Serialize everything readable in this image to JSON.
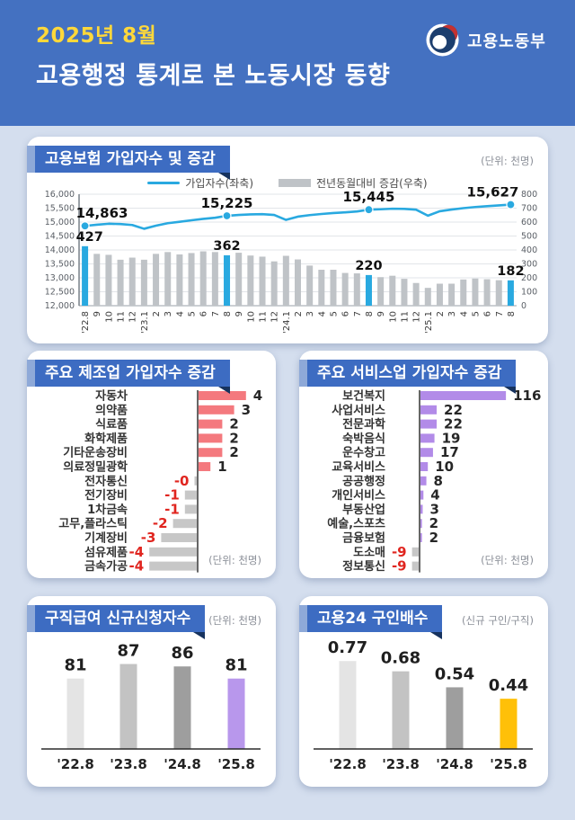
{
  "header": {
    "date": "2025년 8월",
    "title": "고용행정 통계로 본 노동시장 동향",
    "agency": "고용노동부"
  },
  "colors": {
    "header_blue": "#4471c1",
    "badge_blue": "#3d6cc2",
    "badge_fold": "#16325e",
    "accent_cyan": "#29a9e0",
    "bar_gray": "#bfc3c7",
    "manufacturing_pink": "#f4797e",
    "services_purple": "#b28be8",
    "benefit_purple": "#b897ec",
    "ratio_yellow": "#ffc008",
    "negative_red": "#e0251f",
    "date_yellow": "#ffd83a"
  },
  "chart_data": [
    {
      "id": "insurance",
      "type": "line+bar",
      "title": "고용보험 가입자수 및 증감",
      "unit_note": "(단위: 천명)",
      "legend": [
        {
          "label": "가입자수(좌축)",
          "style": "line",
          "color": "#29a9e0"
        },
        {
          "label": "전년동월대비 증감(우축)",
          "style": "bar",
          "color": "#bfc3c7"
        }
      ],
      "categories": [
        "'22.8",
        "9",
        "10",
        "11",
        "12",
        "'23.1",
        "2",
        "3",
        "4",
        "5",
        "6",
        "7",
        "8",
        "9",
        "10",
        "11",
        "12",
        "'24.1",
        "2",
        "3",
        "4",
        "5",
        "6",
        "7",
        "8",
        "9",
        "10",
        "11",
        "12",
        "'25.1",
        "2",
        "3",
        "4",
        "5",
        "6",
        "7",
        "8"
      ],
      "series": [
        {
          "name": "가입자수(좌축)",
          "type": "line",
          "axis": "left",
          "values": [
            14863,
            14905,
            14940,
            14930,
            14895,
            14760,
            14870,
            14960,
            15010,
            15065,
            15115,
            15155,
            15225,
            15255,
            15275,
            15285,
            15255,
            15080,
            15195,
            15250,
            15290,
            15325,
            15350,
            15380,
            15445,
            15460,
            15480,
            15475,
            15445,
            15230,
            15390,
            15450,
            15500,
            15540,
            15570,
            15600,
            15627
          ]
        },
        {
          "name": "전년동월대비 증감(우축)",
          "type": "bar",
          "axis": "right",
          "values": [
            427,
            372,
            365,
            330,
            345,
            330,
            372,
            385,
            368,
            378,
            390,
            385,
            362,
            380,
            360,
            352,
            318,
            358,
            332,
            288,
            258,
            258,
            235,
            232,
            220,
            205,
            215,
            193,
            163,
            128,
            158,
            158,
            188,
            195,
            190,
            183,
            182
          ]
        }
      ],
      "highlight_indices": [
        0,
        12,
        24,
        36
      ],
      "line_callouts": [
        "14,863",
        "15,225",
        "15,445",
        "15,627"
      ],
      "bar_callouts": [
        "427",
        "362",
        "220",
        "182"
      ],
      "left_axis": {
        "min": 12000,
        "max": 16000,
        "step": 500
      },
      "right_axis": {
        "min": 0,
        "max": 800,
        "step": 100
      },
      "grid": true
    },
    {
      "id": "manufacturing",
      "type": "bar-horizontal",
      "title": "주요 제조업 가입자수 증감",
      "unit_note": "(단위: 천명)",
      "categories": [
        "자동차",
        "의약품",
        "식료품",
        "화학제품",
        "기타운송장비",
        "의료정밀광학",
        "전자통신",
        "전기장비",
        "1차금속",
        "고무,플라스틱",
        "기계장비",
        "섬유제품",
        "금속가공"
      ],
      "values": [
        4,
        3,
        2,
        2,
        2,
        1,
        0,
        -1,
        -1,
        -2,
        -3,
        -4,
        -4
      ],
      "labels": [
        "4",
        "3",
        "2",
        "2",
        "2",
        "1",
        "-0",
        "-1",
        "-1",
        "-2",
        "-3",
        "-4",
        "-4"
      ]
    },
    {
      "id": "services",
      "type": "bar-horizontal",
      "title": "주요 서비스업 가입자수 증감",
      "unit_note": "(단위: 천명)",
      "categories": [
        "보건복지",
        "사업서비스",
        "전문과학",
        "숙박음식",
        "운수창고",
        "교육서비스",
        "공공행정",
        "개인서비스",
        "부동산업",
        "예술,스포츠",
        "금융보험",
        "도소매",
        "정보통신"
      ],
      "values": [
        116,
        22,
        22,
        19,
        17,
        10,
        8,
        4,
        3,
        2,
        2,
        -9,
        -9
      ],
      "labels": [
        "116",
        "22",
        "22",
        "19",
        "17",
        "10",
        "8",
        "4",
        "3",
        "2",
        "2",
        "-9",
        "-9"
      ]
    },
    {
      "id": "benefit",
      "type": "bar",
      "title": "구직급여 신규신청자수",
      "unit_note": "(단위: 천명)",
      "categories": [
        "'22.8",
        "'23.8",
        "'24.8",
        "'25.8"
      ],
      "values": [
        81,
        87,
        86,
        81
      ],
      "labels": [
        "81",
        "87",
        "86",
        "81"
      ],
      "bar_colors": [
        "#e4e4e4",
        "#c3c3c3",
        "#9e9e9e",
        "#b897ec"
      ]
    },
    {
      "id": "ratio",
      "type": "bar",
      "title": "고용24 구인배수",
      "unit_note": "(신규 구인/구직)",
      "categories": [
        "'22.8",
        "'23.8",
        "'24.8",
        "'25.8"
      ],
      "values": [
        0.77,
        0.68,
        0.54,
        0.44
      ],
      "labels": [
        "0.77",
        "0.68",
        "0.54",
        "0.44"
      ],
      "bar_colors": [
        "#e4e4e4",
        "#c3c3c3",
        "#9e9e9e",
        "#ffc008"
      ]
    }
  ]
}
